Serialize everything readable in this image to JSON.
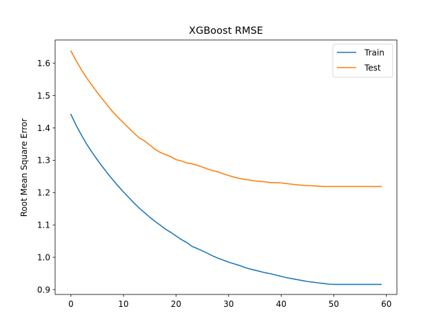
{
  "chart_data": {
    "type": "line",
    "title": "XGBoost RMSE",
    "xlabel": "",
    "ylabel": "Root Mean Square Error",
    "xlim": [
      -3,
      62
    ],
    "ylim": [
      0.885,
      1.672
    ],
    "xticks": [
      0,
      10,
      20,
      30,
      40,
      50,
      60
    ],
    "xtick_labels": [
      "0",
      "10",
      "20",
      "30",
      "40",
      "50",
      "60"
    ],
    "yticks": [
      0.9,
      1.0,
      1.1,
      1.2,
      1.3,
      1.4,
      1.5,
      1.6
    ],
    "ytick_labels": [
      "0.9",
      "1.0",
      "1.1",
      "1.2",
      "1.3",
      "1.4",
      "1.5",
      "1.6"
    ],
    "grid": false,
    "legend_position": "top-right",
    "x": [
      0,
      1,
      2,
      3,
      4,
      5,
      6,
      7,
      8,
      9,
      10,
      11,
      12,
      13,
      14,
      15,
      16,
      17,
      18,
      19,
      20,
      21,
      22,
      23,
      24,
      25,
      26,
      27,
      28,
      29,
      30,
      31,
      32,
      33,
      34,
      35,
      36,
      37,
      38,
      39,
      40,
      41,
      42,
      43,
      44,
      45,
      46,
      47,
      48,
      49,
      50,
      51,
      52,
      53,
      54,
      55,
      56,
      57,
      58,
      59
    ],
    "series": [
      {
        "name": "Train",
        "color": "#1f77b4",
        "values": [
          1.442,
          1.408,
          1.378,
          1.35,
          1.325,
          1.302,
          1.28,
          1.259,
          1.239,
          1.22,
          1.202,
          1.185,
          1.168,
          1.152,
          1.138,
          1.124,
          1.111,
          1.099,
          1.087,
          1.077,
          1.066,
          1.055,
          1.046,
          1.034,
          1.027,
          1.02,
          1.012,
          1.004,
          0.997,
          0.991,
          0.985,
          0.98,
          0.975,
          0.969,
          0.964,
          0.96,
          0.956,
          0.952,
          0.949,
          0.945,
          0.941,
          0.937,
          0.934,
          0.931,
          0.928,
          0.925,
          0.923,
          0.921,
          0.919,
          0.917,
          0.916,
          0.916,
          0.916,
          0.916,
          0.916,
          0.916,
          0.916,
          0.916,
          0.916,
          0.916
        ]
      },
      {
        "name": "Test",
        "color": "#ff7f0e",
        "values": [
          1.638,
          1.608,
          1.58,
          1.555,
          1.532,
          1.51,
          1.489,
          1.469,
          1.449,
          1.432,
          1.416,
          1.4,
          1.384,
          1.369,
          1.36,
          1.347,
          1.334,
          1.324,
          1.318,
          1.311,
          1.302,
          1.298,
          1.292,
          1.289,
          1.285,
          1.279,
          1.273,
          1.268,
          1.264,
          1.258,
          1.253,
          1.248,
          1.244,
          1.241,
          1.239,
          1.236,
          1.235,
          1.233,
          1.231,
          1.231,
          1.23,
          1.228,
          1.226,
          1.224,
          1.223,
          1.222,
          1.221,
          1.22,
          1.219,
          1.219,
          1.219,
          1.219,
          1.219,
          1.219,
          1.219,
          1.219,
          1.219,
          1.219,
          1.219,
          1.219
        ]
      }
    ]
  }
}
